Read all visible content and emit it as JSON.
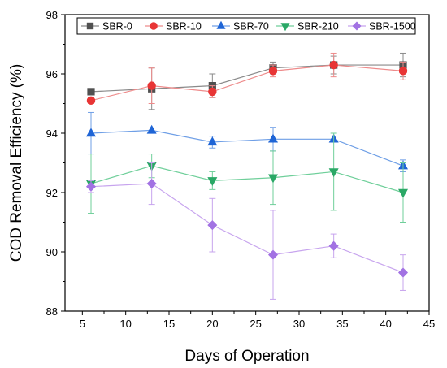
{
  "chart_data": {
    "type": "line",
    "title": "",
    "xlabel": "Days of Operation",
    "ylabel": "COD Removal Efficiency (%)",
    "xlim": [
      3,
      45
    ],
    "ylim": [
      88,
      98
    ],
    "xticks": [
      5,
      10,
      15,
      20,
      25,
      30,
      35,
      40,
      45
    ],
    "yticks": [
      88,
      90,
      92,
      94,
      96,
      98
    ],
    "grid": false,
    "legend_position": "top",
    "x": [
      6,
      13,
      20,
      27,
      34,
      42
    ],
    "series": [
      {
        "name": "SBR-0",
        "marker": "square",
        "line_color": "#8a8a8a",
        "marker_color": "#505050",
        "values": [
          95.4,
          95.5,
          95.6,
          96.2,
          96.3,
          96.3
        ],
        "errors": [
          0.1,
          0.7,
          0.4,
          0.2,
          0.3,
          0.4
        ]
      },
      {
        "name": "SBR-10",
        "marker": "circle",
        "line_color": "#ee8a8a",
        "marker_color": "#e83535",
        "values": [
          95.1,
          95.6,
          95.4,
          96.1,
          96.3,
          96.1
        ],
        "errors": [
          0.1,
          0.6,
          0.2,
          0.2,
          0.4,
          0.3
        ]
      },
      {
        "name": "SBR-70",
        "marker": "triangle-up",
        "line_color": "#6f9fe6",
        "marker_color": "#1f65d6",
        "values": [
          94.0,
          94.1,
          93.7,
          93.8,
          93.8,
          92.9
        ],
        "errors": [
          0.7,
          0.0,
          0.2,
          0.4,
          0.0,
          0.2
        ]
      },
      {
        "name": "SBR-210",
        "marker": "triangle-down",
        "line_color": "#6fcf9a",
        "marker_color": "#2aa866",
        "values": [
          92.3,
          92.9,
          92.4,
          92.5,
          92.7,
          92.0
        ],
        "errors": [
          1.0,
          0.4,
          0.3,
          0.9,
          1.3,
          1.0
        ]
      },
      {
        "name": "SBR-1500",
        "marker": "diamond",
        "line_color": "#c7a4ee",
        "marker_color": "#a272e3",
        "values": [
          92.2,
          92.3,
          90.9,
          89.9,
          90.2,
          89.3
        ],
        "errors": [
          0.2,
          0.7,
          0.9,
          1.5,
          0.4,
          0.6
        ]
      }
    ]
  }
}
